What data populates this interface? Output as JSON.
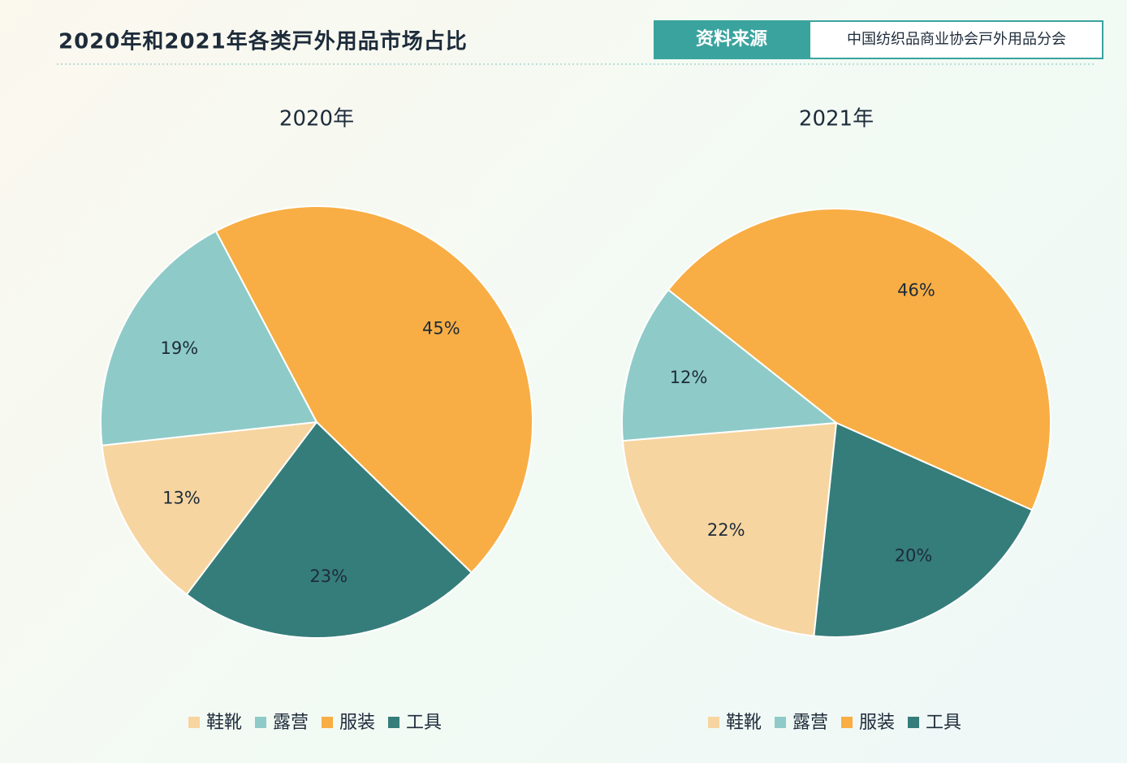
{
  "header": {
    "title": "2020年和2021年各类戸外用品市场占比",
    "source_label": "资料来源",
    "source": "中国纺织品商业协会戸外用品分会"
  },
  "chart_data": [
    {
      "type": "pie",
      "title": "2020年",
      "categories": [
        "鞋靴",
        "露营",
        "服装",
        "工具"
      ],
      "values": [
        13,
        19,
        45,
        23
      ],
      "value_labels": [
        "13%",
        "19%",
        "45%",
        "23%"
      ],
      "colors": [
        "#f7d5a0",
        "#8ecbc8",
        "#f8ae44",
        "#357d7a"
      ]
    },
    {
      "type": "pie",
      "title": "2021年",
      "categories": [
        "鞋靴",
        "露营",
        "服装",
        "工具"
      ],
      "values": [
        22,
        12,
        46,
        20
      ],
      "value_labels": [
        "22%",
        "12%",
        "46%",
        "20%"
      ],
      "colors": [
        "#f7d5a0",
        "#8ecbc8",
        "#f8ae44",
        "#357d7a"
      ]
    }
  ]
}
